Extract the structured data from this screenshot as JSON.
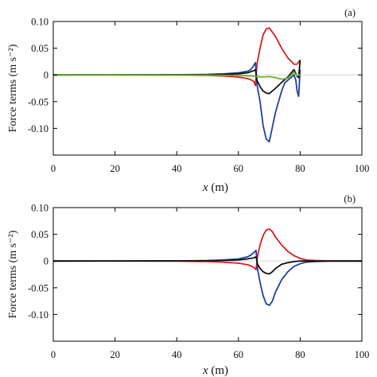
{
  "chart_data": [
    {
      "type": "line",
      "panel_label": "(a)",
      "ylabel": "Force terms (m s⁻²)",
      "xlabel": "x (m)",
      "xlabel_var": "x",
      "xlabel_unit": "(m)",
      "xlim": [
        0,
        100
      ],
      "ylim": [
        -0.15,
        0.1
      ],
      "xticks": [
        0,
        20,
        40,
        60,
        80,
        100
      ],
      "xtick_labels": [
        "0",
        "20",
        "40",
        "60",
        "80",
        "100"
      ],
      "yticks": [
        0.1,
        0.05,
        0,
        -0.05,
        -0.1
      ],
      "ytick_labels": [
        "0.10",
        "0.05",
        "0",
        "-0.05",
        "-0.10"
      ],
      "grid": false,
      "series": [
        {
          "color": "#d42020",
          "x": [
            0,
            40,
            50,
            55,
            60,
            63,
            64,
            65,
            65.5,
            66,
            67,
            68,
            69,
            70,
            72,
            74,
            76,
            78,
            79,
            80
          ],
          "y": [
            0,
            -0.0003,
            -0.001,
            -0.002,
            -0.004,
            -0.007,
            -0.009,
            -0.012,
            -0.02,
            0.02,
            0.05,
            0.075,
            0.086,
            0.088,
            0.072,
            0.05,
            0.032,
            0.02,
            0.02,
            0.028
          ]
        },
        {
          "color": "#2040a0",
          "x": [
            0,
            40,
            50,
            55,
            60,
            63,
            64,
            65,
            65.5,
            66,
            67,
            68,
            69,
            70,
            72,
            74,
            75,
            76,
            77,
            78,
            78.6,
            79,
            79.5,
            80
          ],
          "y": [
            0,
            0.0003,
            0.001,
            0.002,
            0.004,
            0.007,
            0.01,
            0.018,
            0.023,
            -0.018,
            -0.05,
            -0.095,
            -0.12,
            -0.125,
            -0.07,
            -0.03,
            -0.015,
            -0.01,
            -0.005,
            0.0,
            -0.01,
            -0.03,
            -0.04,
            0.01
          ]
        },
        {
          "color": "#111111",
          "x": [
            0,
            50,
            60,
            63,
            65,
            65.5,
            66,
            67,
            68,
            69,
            70,
            72,
            74,
            76,
            78,
            79,
            79.5,
            80
          ],
          "y": [
            0,
            0.0005,
            0.002,
            0.004,
            0.008,
            0.01,
            -0.01,
            -0.022,
            -0.03,
            -0.034,
            -0.035,
            -0.025,
            -0.014,
            -0.004,
            0.01,
            -0.003,
            -0.005,
            0.028
          ]
        },
        {
          "color": "#6ab02a",
          "x": [
            0,
            50,
            60,
            64,
            66,
            68,
            70,
            72,
            74,
            76,
            78,
            79,
            80
          ],
          "y": [
            0,
            -0.0005,
            -0.001,
            -0.002,
            -0.003,
            -0.004,
            -0.003,
            -0.005,
            -0.008,
            -0.006,
            0.005,
            -0.002,
            0.001
          ]
        }
      ]
    },
    {
      "type": "line",
      "panel_label": "(b)",
      "ylabel": "Force terms (m s⁻²)",
      "xlabel": "x (m)",
      "xlabel_var": "x",
      "xlabel_unit": "(m)",
      "xlim": [
        0,
        100
      ],
      "ylim": [
        -0.15,
        0.1
      ],
      "xticks": [
        0,
        20,
        40,
        60,
        80,
        100
      ],
      "xtick_labels": [
        "0",
        "20",
        "40",
        "60",
        "80",
        "100"
      ],
      "yticks": [
        0.1,
        0.05,
        0,
        -0.05,
        -0.1
      ],
      "ytick_labels": [
        "0.10",
        "0.05",
        "0",
        "-0.05",
        "-0.10"
      ],
      "grid": false,
      "series": [
        {
          "color": "#d42020",
          "x": [
            0,
            40,
            50,
            55,
            60,
            63,
            64,
            65,
            65.7,
            66.2,
            67,
            68,
            69,
            70,
            71,
            72,
            74,
            76,
            78,
            80,
            82,
            85,
            90,
            100
          ],
          "y": [
            0,
            -0.0003,
            -0.001,
            -0.002,
            -0.004,
            -0.007,
            -0.009,
            -0.012,
            -0.016,
            0.01,
            0.03,
            0.048,
            0.058,
            0.06,
            0.055,
            0.045,
            0.03,
            0.018,
            0.01,
            0.005,
            0.002,
            0.001,
            0.0,
            0.0
          ]
        },
        {
          "color": "#2040a0",
          "x": [
            0,
            40,
            50,
            55,
            60,
            63,
            64,
            65,
            65.7,
            66.2,
            67,
            68,
            69,
            70,
            71,
            72,
            74,
            76,
            78,
            80,
            82,
            85,
            90,
            100
          ],
          "y": [
            0,
            0.0003,
            0.001,
            0.002,
            0.004,
            0.008,
            0.011,
            0.016,
            0.02,
            -0.015,
            -0.04,
            -0.065,
            -0.08,
            -0.083,
            -0.075,
            -0.058,
            -0.035,
            -0.02,
            -0.01,
            -0.005,
            -0.002,
            -0.001,
            0.0,
            0.0
          ]
        },
        {
          "color": "#111111",
          "x": [
            0,
            50,
            60,
            63,
            65,
            65.7,
            66.2,
            67,
            68,
            69,
            70,
            71,
            72,
            74,
            76,
            78,
            80,
            82,
            85,
            90,
            100
          ],
          "y": [
            0,
            0.0005,
            0.002,
            0.004,
            0.006,
            0.008,
            -0.006,
            -0.014,
            -0.02,
            -0.023,
            -0.024,
            -0.02,
            -0.014,
            -0.006,
            -0.003,
            -0.001,
            0.0,
            0.0,
            0.0,
            0.0,
            0.0
          ]
        }
      ]
    }
  ]
}
